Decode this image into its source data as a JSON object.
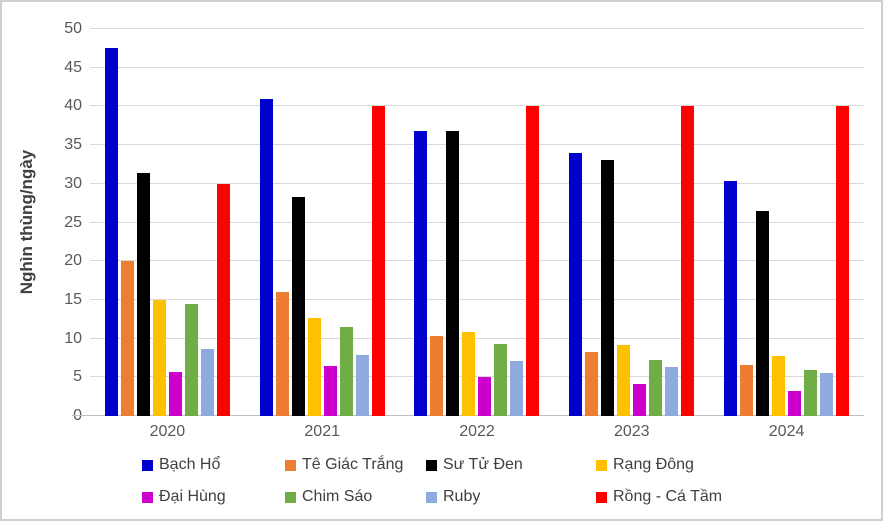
{
  "chart_data": {
    "type": "bar",
    "title": "",
    "xlabel": "",
    "ylabel": "Nghìn thùng/ngày",
    "ylim": [
      0,
      50
    ],
    "yticks": [
      0,
      5,
      10,
      15,
      20,
      25,
      30,
      35,
      40,
      45,
      50
    ],
    "grid": true,
    "legend_position": "bottom",
    "categories": [
      "2020",
      "2021",
      "2022",
      "2023",
      "2024"
    ],
    "series": [
      {
        "name": "Bạch Hổ",
        "color": "#0000CC",
        "values": [
          47.5,
          41.0,
          36.8,
          34.0,
          30.4
        ]
      },
      {
        "name": "Tê Giác Trắng",
        "color": "#ED7D31",
        "values": [
          20.0,
          16.0,
          10.3,
          8.3,
          6.6
        ]
      },
      {
        "name": "Sư Tử Đen",
        "color": "#000000",
        "values": [
          31.4,
          28.3,
          36.8,
          33.1,
          26.5
        ]
      },
      {
        "name": "Rạng Đông",
        "color": "#FFC000",
        "values": [
          15.0,
          12.6,
          10.8,
          9.2,
          7.8
        ]
      },
      {
        "name": "Đại Hùng",
        "color": "#CC00CC",
        "values": [
          5.7,
          6.4,
          5.1,
          4.1,
          3.2
        ]
      },
      {
        "name": "Chim Sáo",
        "color": "#70AD47",
        "values": [
          14.5,
          11.5,
          9.3,
          7.3,
          5.9
        ]
      },
      {
        "name": "Ruby",
        "color": "#8FAADC",
        "values": [
          8.7,
          7.9,
          7.1,
          6.3,
          5.6
        ]
      },
      {
        "name": "Rồng - Cá Tầm",
        "color": "#FF0000",
        "values": [
          30.0,
          40.0,
          40.0,
          40.0,
          40.0
        ]
      }
    ],
    "legend_rows": [
      [
        0,
        1,
        2,
        3
      ],
      [
        4,
        5,
        6,
        7
      ]
    ]
  },
  "colors": {
    "grid": "#D9D9D9",
    "axis": "#BFBFBF",
    "tick_text": "#595959",
    "label_text": "#404040",
    "background": "#FFFFFF",
    "frame_border": "#CFCFCF"
  }
}
